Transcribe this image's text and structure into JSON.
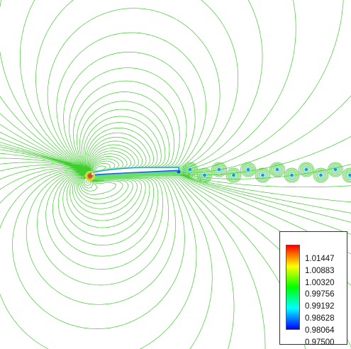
{
  "chart_data": {
    "type": "contour",
    "title": "",
    "xlabel": "",
    "ylabel": "",
    "colormap": [
      "#0000ff",
      "#00ffff",
      "#00ff00",
      "#ffff00",
      "#ff0000"
    ],
    "colorbar": {
      "min": 0.975,
      "max": 1.01447,
      "tick_labels": [
        "1.01447",
        "1.00883",
        "1.00320",
        "0.99756",
        "0.99192",
        "0.98628",
        "0.98064",
        "0.97500"
      ]
    },
    "line_color": "#3fcc2e"
  }
}
